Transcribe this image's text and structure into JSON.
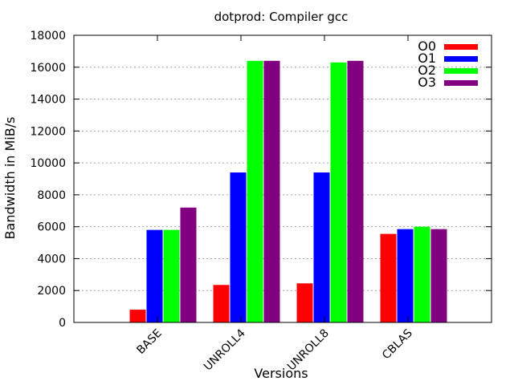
{
  "chart_data": {
    "type": "bar",
    "title": "dotprod: Compiler gcc",
    "xlabel": "Versions",
    "ylabel": "Bandwidth in MiB/s",
    "ylim": [
      0,
      18000
    ],
    "yticks": [
      0,
      2000,
      4000,
      6000,
      8000,
      10000,
      12000,
      14000,
      16000,
      18000
    ],
    "categories": [
      "BASE",
      "UNROLL4",
      "UNROLL8",
      "CBLAS"
    ],
    "grid": true,
    "legend_position": "top-right",
    "series": [
      {
        "name": "O0",
        "color": "#ff0000",
        "values": [
          800,
          2350,
          2450,
          5550
        ]
      },
      {
        "name": "O1",
        "color": "#0000ff",
        "values": [
          5800,
          9400,
          9400,
          5850
        ]
      },
      {
        "name": "O2",
        "color": "#00ff00",
        "values": [
          5800,
          16400,
          16300,
          6000
        ]
      },
      {
        "name": "O3",
        "color": "#800080",
        "values": [
          7200,
          16400,
          16400,
          5850
        ]
      }
    ]
  }
}
